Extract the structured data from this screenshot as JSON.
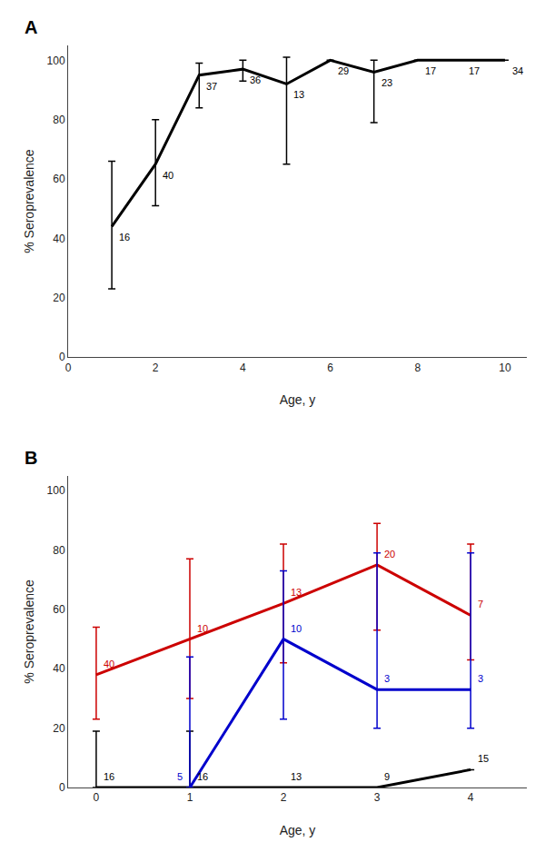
{
  "chart_data": [
    {
      "type": "line",
      "title": "A",
      "xlabel": "Age, y",
      "ylabel": "% Seroprevalence",
      "xlim": [
        0,
        10.5
      ],
      "ylim": [
        0,
        105
      ],
      "xticks": [
        0,
        2,
        4,
        6,
        8,
        10
      ],
      "yticks": [
        0,
        20,
        40,
        60,
        80,
        100
      ],
      "grid": false,
      "series": [
        {
          "color": "#000000",
          "x": [
            1,
            2,
            3,
            4,
            5,
            6,
            7,
            8,
            9,
            10
          ],
          "values": [
            44,
            65,
            95,
            97,
            92,
            100,
            96,
            100,
            100,
            100
          ],
          "yerr_lower": [
            21,
            14,
            11,
            4,
            27,
            0,
            17,
            0,
            0,
            0
          ],
          "yerr_upper": [
            22,
            15,
            4,
            3,
            9,
            0,
            4,
            0,
            0,
            0
          ],
          "n_labels": [
            "16",
            "40",
            "37",
            "36",
            "13",
            "29",
            "23",
            "17",
            "17",
            "34"
          ]
        }
      ]
    },
    {
      "type": "line",
      "title": "B",
      "xlabel": "Age, y",
      "ylabel": "% Seroprevalence",
      "xlim": [
        -0.3,
        4.6
      ],
      "ylim": [
        0,
        105
      ],
      "xticks": [
        0,
        1,
        2,
        3,
        4
      ],
      "yticks": [
        0,
        20,
        40,
        60,
        80,
        100
      ],
      "grid": false,
      "series": [
        {
          "color": "#000000",
          "x": [
            0,
            1,
            2,
            3,
            4
          ],
          "values": [
            0,
            0,
            0,
            0,
            6
          ],
          "yerr_lower": [
            0,
            0,
            0,
            0,
            0
          ],
          "yerr_upper": [
            19,
            19,
            0,
            0,
            0
          ],
          "n_labels": [
            "16",
            "16",
            "13",
            "9",
            "15"
          ]
        },
        {
          "color": "#cc0000",
          "x": [
            0,
            1,
            2,
            3,
            4
          ],
          "values": [
            38,
            50,
            62,
            75,
            58
          ],
          "yerr_lower": [
            15,
            20,
            20,
            22,
            15
          ],
          "yerr_upper": [
            16,
            27,
            20,
            14,
            24
          ],
          "n_labels": [
            "40",
            "10",
            "13",
            "20",
            "7"
          ]
        },
        {
          "color": "#0000cc",
          "x": [
            1,
            2,
            3,
            4
          ],
          "values": [
            0,
            50,
            33,
            33
          ],
          "yerr_lower": [
            0,
            27,
            13,
            13
          ],
          "yerr_upper": [
            44,
            23,
            46,
            46
          ],
          "n_labels": [
            "5",
            "10",
            "3",
            "3"
          ]
        }
      ]
    }
  ]
}
